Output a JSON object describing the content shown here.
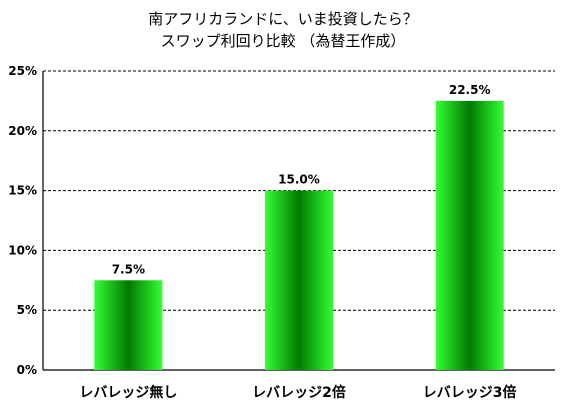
{
  "chart_data": {
    "type": "bar",
    "title": [
      "南アフリカランドに、いま投資したら？",
      "スワップ利回り比較 （為替王作成）"
    ],
    "xlabel": "",
    "ylabel": "",
    "categories": [
      "レバレッジ無し",
      "レバレッジ2倍",
      "レバレッジ3倍"
    ],
    "values": [
      7.5,
      15.0,
      22.5
    ],
    "data_labels": [
      "7.5%",
      "15.0%",
      "22.5%"
    ],
    "ylim": [
      0,
      25
    ],
    "yticks": [
      0,
      5,
      10,
      15,
      20,
      25
    ],
    "ytick_labels": [
      "0%",
      "5%",
      "10%",
      "15%",
      "20%",
      "25%"
    ],
    "grid": true,
    "legend": false,
    "colors": {
      "bar_dark": "#007a00",
      "bar_light": "#33ff33"
    }
  }
}
